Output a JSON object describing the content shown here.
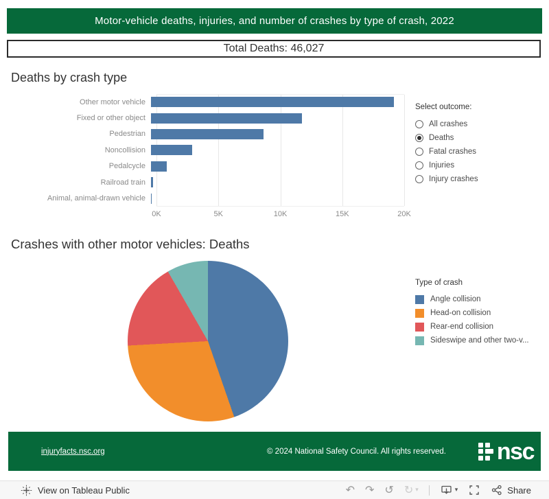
{
  "header": {
    "title": "Motor-vehicle deaths, injuries, and number of crashes by type of crash, 2022"
  },
  "total_banner": {
    "text": "Total Deaths: 46,027"
  },
  "bar_section": {
    "title": "Deaths by crash type"
  },
  "outcome_filter": {
    "label": "Select outcome:",
    "options": [
      {
        "label": "All crashes",
        "selected": false
      },
      {
        "label": "Deaths",
        "selected": true
      },
      {
        "label": "Fatal crashes",
        "selected": false
      },
      {
        "label": "Injuries",
        "selected": false
      },
      {
        "label": "Injury crashes",
        "selected": false
      }
    ]
  },
  "pie_section": {
    "title": "Crashes with other motor vehicles: Deaths"
  },
  "legend": {
    "title": "Type of crash",
    "items": [
      {
        "label": "Angle collision",
        "color": "#4e79a7"
      },
      {
        "label": "Head-on collision",
        "color": "#f28e2b"
      },
      {
        "label": "Rear-end collision",
        "color": "#e15759"
      },
      {
        "label": "Sideswipe and other two-v...",
        "color": "#76b7b2"
      }
    ]
  },
  "footer": {
    "link": "injuryfacts.nsc.org",
    "copyright": "© 2024 National Safety Council. All rights reserved.",
    "logo_text": "nsc"
  },
  "toolbar": {
    "view_label": "View on Tableau Public",
    "share_label": "Share",
    "icons": [
      "tableau-logo",
      "undo",
      "redo",
      "reset",
      "replay",
      "replay-caret",
      "separator",
      "download",
      "download-caret",
      "fullscreen",
      "share"
    ]
  },
  "colors": {
    "brand_green": "#06693a",
    "bar_blue": "#4e79a7",
    "title_text": "#333333",
    "axis_text": "#8a8a8a"
  },
  "chart_data": [
    {
      "type": "bar",
      "orientation": "horizontal",
      "title": "Deaths by crash type",
      "categories": [
        "Other motor vehicle",
        "Fixed or other object",
        "Pedestrian",
        "Noncollision",
        "Pedalcycle",
        "Railroad train",
        "Animal, animal-drawn vehicle"
      ],
      "values": [
        19600,
        12200,
        9100,
        3300,
        1250,
        150,
        80
      ],
      "xlabel": "",
      "ylabel": "",
      "xlim": [
        0,
        20000
      ],
      "xticks": [
        "0K",
        "5K",
        "10K",
        "15K",
        "20K"
      ],
      "xtick_values": [
        0,
        5000,
        10000,
        15000,
        20000
      ],
      "bar_color": "#4e79a7",
      "grid": true,
      "legend_position": "none"
    },
    {
      "type": "pie",
      "title": "Crashes with other motor vehicles: Deaths",
      "labels": [
        "Angle collision",
        "Head-on collision",
        "Rear-end collision",
        "Sideswipe and other two-v..."
      ],
      "values_percent": [
        44.7,
        29.4,
        17.6,
        8.3
      ],
      "colors": [
        "#4e79a7",
        "#f28e2b",
        "#e15759",
        "#76b7b2"
      ],
      "start_angle_deg": 0,
      "direction": "clockwise",
      "legend_title": "Type of crash",
      "legend_position": "right"
    }
  ]
}
